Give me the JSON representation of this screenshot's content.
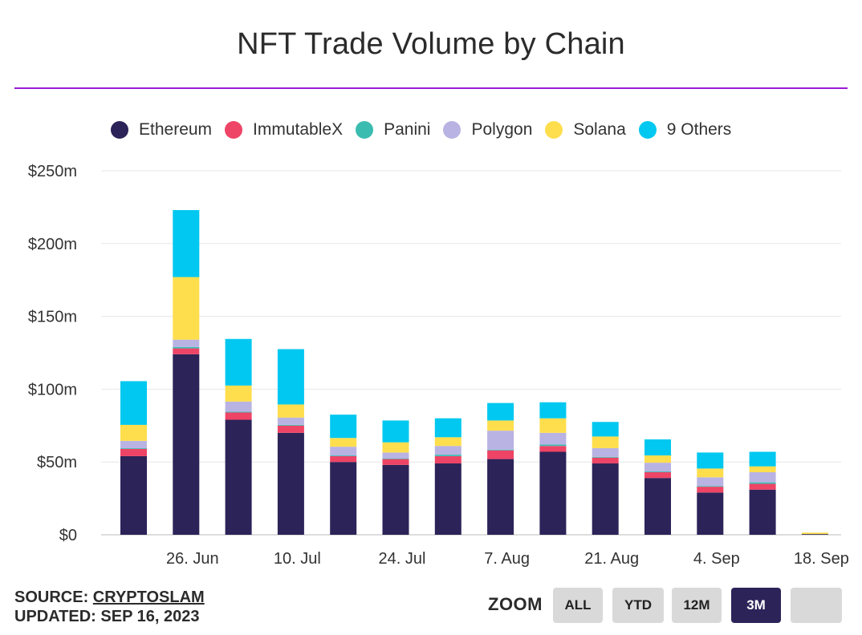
{
  "title": "NFT Trade Volume by Chain",
  "footer": {
    "source_label": "SOURCE: ",
    "source_link": "CRYPTOSLAM",
    "updated": "UPDATED: SEP 16, 2023"
  },
  "zoom": {
    "label": "ZOOM",
    "buttons": [
      {
        "label": "ALL",
        "active": false
      },
      {
        "label": "YTD",
        "active": false
      },
      {
        "label": "12M",
        "active": false
      },
      {
        "label": "3M",
        "active": true
      },
      {
        "label": "",
        "active": false
      }
    ]
  },
  "chart_data": {
    "type": "bar",
    "stacked": true,
    "ylim": [
      0,
      250
    ],
    "yticks": [
      {
        "value": 0,
        "label": "$0"
      },
      {
        "value": 50,
        "label": "$50m"
      },
      {
        "value": 100,
        "label": "$100m"
      },
      {
        "value": 150,
        "label": "$150m"
      },
      {
        "value": 200,
        "label": "$200m"
      },
      {
        "value": 250,
        "label": "$250m"
      }
    ],
    "xticks": [
      {
        "index": 1,
        "label": "26. Jun"
      },
      {
        "index": 3,
        "label": "10. Jul"
      },
      {
        "index": 5,
        "label": "24. Jul"
      },
      {
        "index": 7,
        "label": "7. Aug"
      },
      {
        "index": 9,
        "label": "21. Aug"
      },
      {
        "index": 11,
        "label": "4. Sep"
      },
      {
        "index": 13,
        "label": "18. Sep"
      }
    ],
    "legend_position": "top",
    "grid": true,
    "series": [
      {
        "name": "Ethereum",
        "color": "#2c2359",
        "values": [
          54,
          124,
          79,
          70,
          50,
          48,
          49,
          52,
          57,
          49,
          39,
          29,
          31,
          0.5
        ]
      },
      {
        "name": "ImmutableX",
        "color": "#ee4466",
        "values": [
          5,
          4,
          5,
          5,
          4,
          4,
          5,
          6,
          4,
          4,
          4,
          4,
          4,
          0
        ]
      },
      {
        "name": "Panini",
        "color": "#3bbcb0",
        "values": [
          0.5,
          1,
          0.5,
          0.5,
          0.5,
          0.5,
          1,
          0.5,
          1,
          0.5,
          0.5,
          0.5,
          1,
          0
        ]
      },
      {
        "name": "Polygon",
        "color": "#b9b3e3",
        "values": [
          5,
          5,
          7,
          5,
          6,
          4,
          6,
          13,
          8,
          6,
          6,
          6,
          7,
          0
        ]
      },
      {
        "name": "Solana",
        "color": "#ffde4d",
        "values": [
          11,
          43,
          11,
          9,
          6,
          7,
          6,
          7,
          10,
          8,
          5,
          6,
          4,
          1
        ]
      },
      {
        "name": "9 Others",
        "color": "#00c8f0",
        "values": [
          30,
          46,
          32,
          38,
          16,
          15,
          13,
          12,
          11,
          10,
          11,
          11,
          10,
          0
        ]
      }
    ]
  }
}
